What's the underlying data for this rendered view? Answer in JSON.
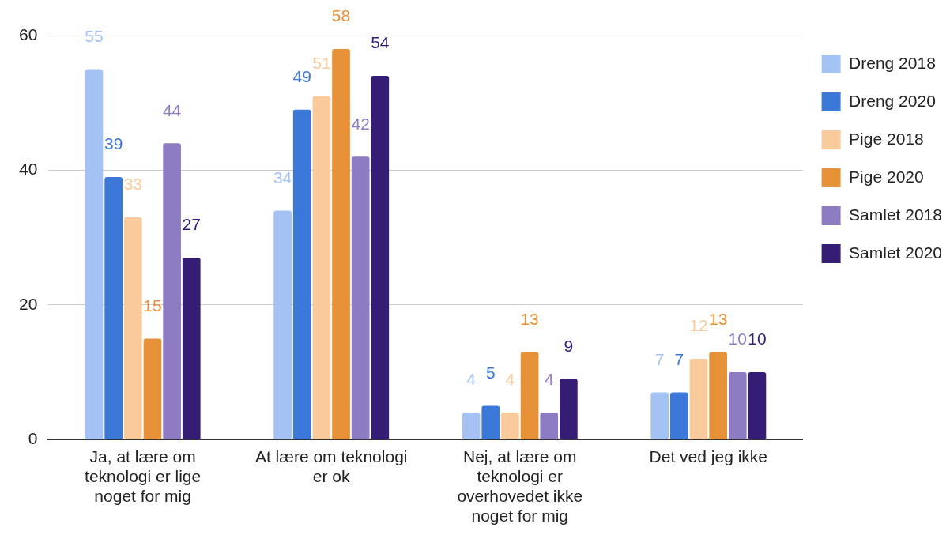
{
  "chart_data": {
    "type": "bar",
    "categories": [
      "Ja, at lære om teknologi er lige noget for mig",
      "At lære om teknologi er ok",
      "Nej, at lære om teknologi er overhovedet ikke noget for mig",
      "Det ved jeg ikke"
    ],
    "series": [
      {
        "name": "Dreng 2018",
        "color": "#a4c2f4",
        "values": [
          55,
          34,
          4,
          7
        ]
      },
      {
        "name": "Dreng 2020",
        "color": "#3c78d8",
        "values": [
          39,
          49,
          5,
          7
        ]
      },
      {
        "name": "Pige 2018",
        "color": "#f9cb9c",
        "values": [
          33,
          51,
          4,
          12
        ]
      },
      {
        "name": "Pige 2020",
        "color": "#e69138",
        "values": [
          15,
          58,
          13,
          13
        ]
      },
      {
        "name": "Samlet 2018",
        "color": "#8e7cc3",
        "values": [
          44,
          42,
          4,
          10
        ]
      },
      {
        "name": "Samlet 2020",
        "color": "#351c75",
        "values": [
          27,
          54,
          9,
          10
        ]
      }
    ],
    "ylim": [
      0,
      60
    ],
    "yticks": [
      0,
      20,
      40,
      60
    ],
    "grid": "y",
    "legend": "right",
    "data_labels": true
  }
}
